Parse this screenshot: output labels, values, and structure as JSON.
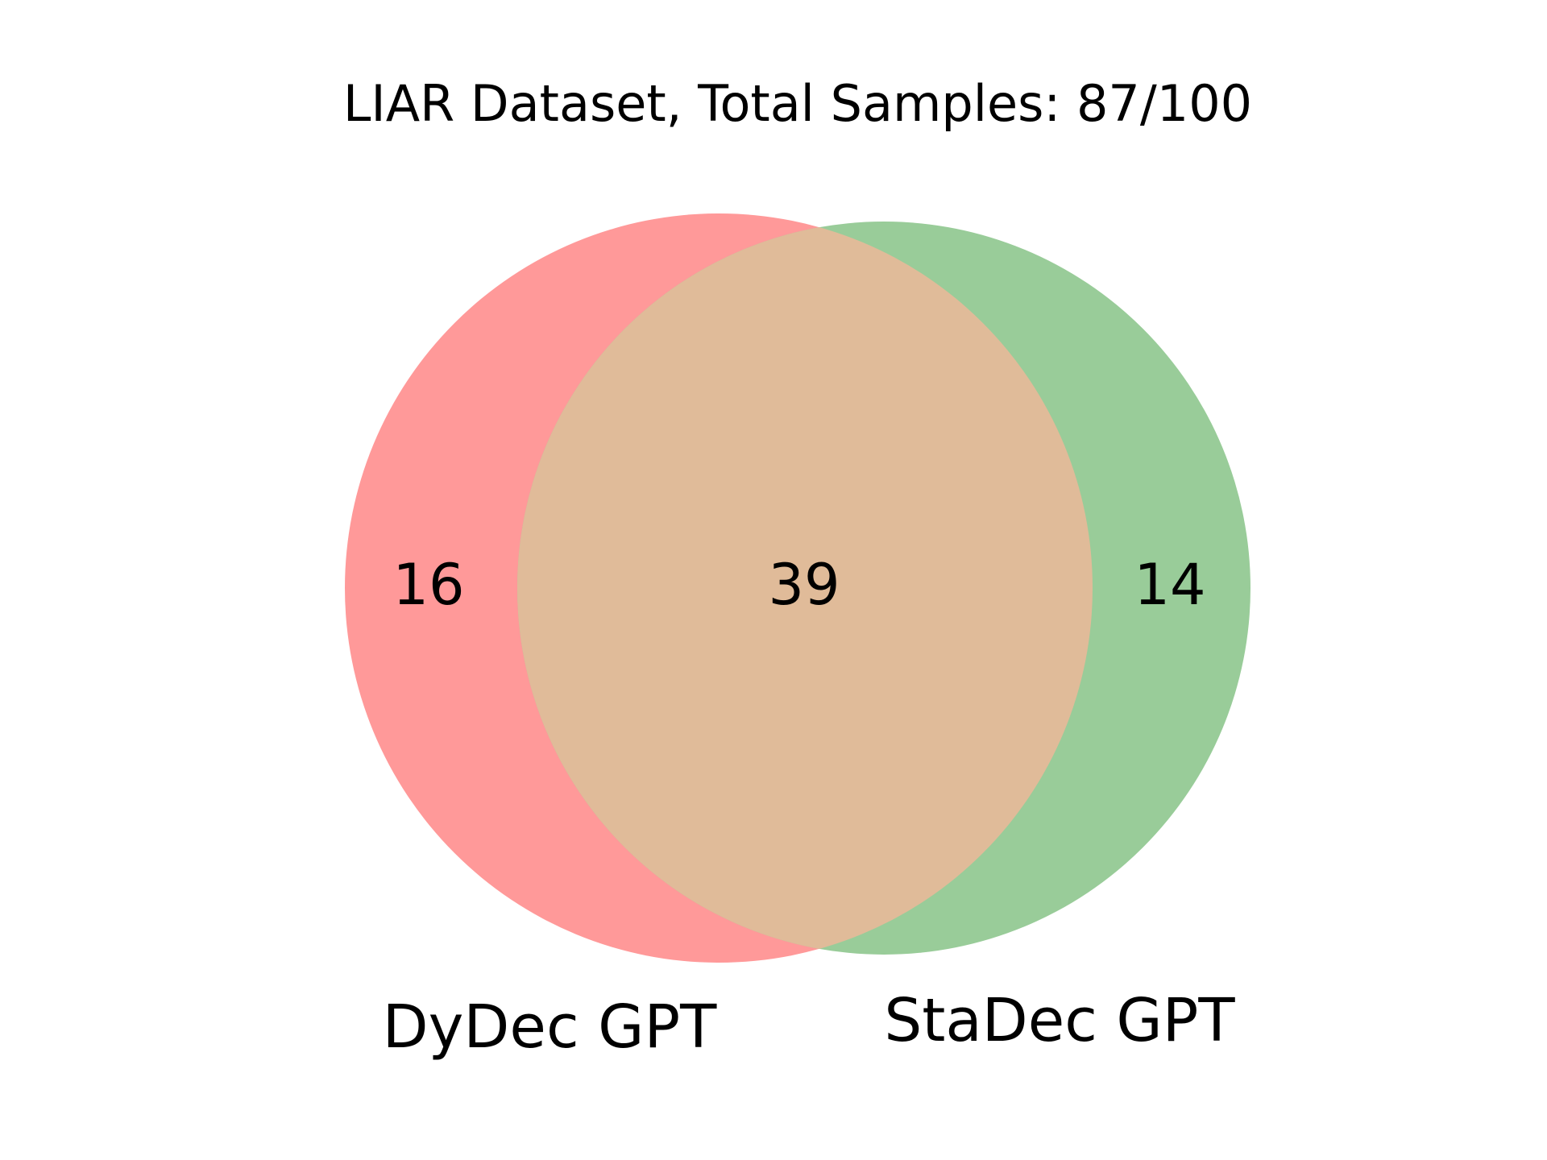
{
  "chart_data": {
    "type": "venn",
    "title": "LIAR Dataset, Total Samples: 87/100",
    "sets": [
      {
        "name": "DyDec GPT",
        "color": "#ff9999"
      },
      {
        "name": "StaDec GPT",
        "color": "#99cc99"
      }
    ],
    "regions": {
      "only_a": 16,
      "intersection": 39,
      "only_b": 14
    },
    "intersection_color": "#e0bb99"
  }
}
